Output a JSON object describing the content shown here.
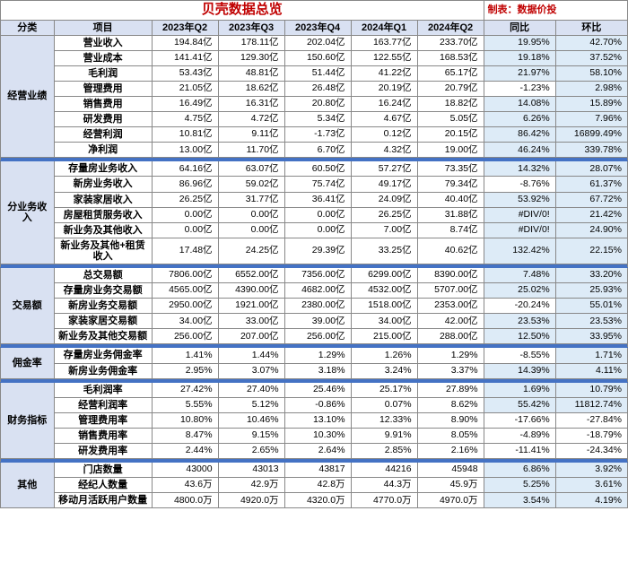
{
  "title": "贝壳数据总览",
  "maker": "制表：数据价投",
  "headers": {
    "category": "分类",
    "item": "项目",
    "periods": [
      "2023年Q2",
      "2023年Q3",
      "2023年Q4",
      "2024年Q1",
      "2024年Q2"
    ],
    "yoy": "同比",
    "qoq": "环比"
  },
  "colors": {
    "title": "#c00000",
    "header_bg": "#d9e1f2",
    "band": "#4472c4",
    "highlight": "#ddebf7",
    "border": "#888888"
  },
  "sections": [
    {
      "category": "经营业绩",
      "rows": [
        {
          "item": "营业收入",
          "v": [
            "194.84亿",
            "178.11亿",
            "202.04亿",
            "163.77亿",
            "233.70亿"
          ],
          "yoy": "19.95%",
          "qoq": "42.70%",
          "hy": true,
          "hq": true
        },
        {
          "item": "营业成本",
          "v": [
            "141.41亿",
            "129.30亿",
            "150.60亿",
            "122.55亿",
            "168.53亿"
          ],
          "yoy": "19.18%",
          "qoq": "37.52%",
          "hy": true,
          "hq": true
        },
        {
          "item": "毛利润",
          "v": [
            "53.43亿",
            "48.81亿",
            "51.44亿",
            "41.22亿",
            "65.17亿"
          ],
          "yoy": "21.97%",
          "qoq": "58.10%",
          "hy": true,
          "hq": true
        },
        {
          "item": "管理费用",
          "v": [
            "21.05亿",
            "18.62亿",
            "26.48亿",
            "20.19亿",
            "20.79亿"
          ],
          "yoy": "-1.23%",
          "qoq": "2.98%",
          "hy": false,
          "hq": true
        },
        {
          "item": "销售费用",
          "v": [
            "16.49亿",
            "16.31亿",
            "20.80亿",
            "16.24亿",
            "18.82亿"
          ],
          "yoy": "14.08%",
          "qoq": "15.89%",
          "hy": true,
          "hq": true
        },
        {
          "item": "研发费用",
          "v": [
            "4.75亿",
            "4.72亿",
            "5.34亿",
            "4.67亿",
            "5.05亿"
          ],
          "yoy": "6.26%",
          "qoq": "7.96%",
          "hy": true,
          "hq": true
        },
        {
          "item": "经营利润",
          "v": [
            "10.81亿",
            "9.11亿",
            "-1.73亿",
            "0.12亿",
            "20.15亿"
          ],
          "yoy": "86.42%",
          "qoq": "16899.49%",
          "hy": true,
          "hq": true
        },
        {
          "item": "净利润",
          "v": [
            "13.00亿",
            "11.70亿",
            "6.70亿",
            "4.32亿",
            "19.00亿"
          ],
          "yoy": "46.24%",
          "qoq": "339.78%",
          "hy": true,
          "hq": true
        }
      ]
    },
    {
      "category": "分业务收入",
      "rows": [
        {
          "item": "存量房业务收入",
          "v": [
            "64.16亿",
            "63.07亿",
            "60.50亿",
            "57.27亿",
            "73.35亿"
          ],
          "yoy": "14.32%",
          "qoq": "28.07%",
          "hy": true,
          "hq": true
        },
        {
          "item": "新房业务收入",
          "v": [
            "86.96亿",
            "59.02亿",
            "75.74亿",
            "49.17亿",
            "79.34亿"
          ],
          "yoy": "-8.76%",
          "qoq": "61.37%",
          "hy": false,
          "hq": true
        },
        {
          "item": "家装家居收入",
          "v": [
            "26.25亿",
            "31.77亿",
            "36.41亿",
            "24.09亿",
            "40.40亿"
          ],
          "yoy": "53.92%",
          "qoq": "67.72%",
          "hy": true,
          "hq": true
        },
        {
          "item": "房屋租赁服务收入",
          "v": [
            "0.00亿",
            "0.00亿",
            "0.00亿",
            "26.25亿",
            "31.88亿"
          ],
          "yoy": "#DIV/0!",
          "qoq": "21.42%",
          "hy": true,
          "hq": true
        },
        {
          "item": "新业务及其他收入",
          "v": [
            "0.00亿",
            "0.00亿",
            "0.00亿",
            "7.00亿",
            "8.74亿"
          ],
          "yoy": "#DIV/0!",
          "qoq": "24.90%",
          "hy": true,
          "hq": true
        },
        {
          "item": "新业务及其他+租赁收入",
          "v": [
            "17.48亿",
            "24.25亿",
            "29.39亿",
            "33.25亿",
            "40.62亿"
          ],
          "yoy": "132.42%",
          "qoq": "22.15%",
          "hy": true,
          "hq": true
        }
      ]
    },
    {
      "category": "交易额",
      "rows": [
        {
          "item": "总交易额",
          "v": [
            "7806.00亿",
            "6552.00亿",
            "7356.00亿",
            "6299.00亿",
            "8390.00亿"
          ],
          "yoy": "7.48%",
          "qoq": "33.20%",
          "hy": true,
          "hq": true
        },
        {
          "item": "存量房业务交易额",
          "v": [
            "4565.00亿",
            "4390.00亿",
            "4682.00亿",
            "4532.00亿",
            "5707.00亿"
          ],
          "yoy": "25.02%",
          "qoq": "25.93%",
          "hy": true,
          "hq": true
        },
        {
          "item": "新房业务交易额",
          "v": [
            "2950.00亿",
            "1921.00亿",
            "2380.00亿",
            "1518.00亿",
            "2353.00亿"
          ],
          "yoy": "-20.24%",
          "qoq": "55.01%",
          "hy": false,
          "hq": true
        },
        {
          "item": "家装家居交易额",
          "v": [
            "34.00亿",
            "33.00亿",
            "39.00亿",
            "34.00亿",
            "42.00亿"
          ],
          "yoy": "23.53%",
          "qoq": "23.53%",
          "hy": true,
          "hq": true
        },
        {
          "item": "新业务及其他交易额",
          "v": [
            "256.00亿",
            "207.00亿",
            "256.00亿",
            "215.00亿",
            "288.00亿"
          ],
          "yoy": "12.50%",
          "qoq": "33.95%",
          "hy": true,
          "hq": true
        }
      ]
    },
    {
      "category": "佣金率",
      "rows": [
        {
          "item": "存量房业务佣金率",
          "v": [
            "1.41%",
            "1.44%",
            "1.29%",
            "1.26%",
            "1.29%"
          ],
          "yoy": "-8.55%",
          "qoq": "1.71%",
          "hy": false,
          "hq": true
        },
        {
          "item": "新房业务佣金率",
          "v": [
            "2.95%",
            "3.07%",
            "3.18%",
            "3.24%",
            "3.37%"
          ],
          "yoy": "14.39%",
          "qoq": "4.11%",
          "hy": true,
          "hq": true
        }
      ]
    },
    {
      "category": "财务指标",
      "rows": [
        {
          "item": "毛利润率",
          "v": [
            "27.42%",
            "27.40%",
            "25.46%",
            "25.17%",
            "27.89%"
          ],
          "yoy": "1.69%",
          "qoq": "10.79%",
          "hy": true,
          "hq": true
        },
        {
          "item": "经营利润率",
          "v": [
            "5.55%",
            "5.12%",
            "-0.86%",
            "0.07%",
            "8.62%"
          ],
          "yoy": "55.42%",
          "qoq": "11812.74%",
          "hy": true,
          "hq": true
        },
        {
          "item": "管理费用率",
          "v": [
            "10.80%",
            "10.46%",
            "13.10%",
            "12.33%",
            "8.90%"
          ],
          "yoy": "-17.66%",
          "qoq": "-27.84%",
          "hy": false,
          "hq": false
        },
        {
          "item": "销售费用率",
          "v": [
            "8.47%",
            "9.15%",
            "10.30%",
            "9.91%",
            "8.05%"
          ],
          "yoy": "-4.89%",
          "qoq": "-18.79%",
          "hy": false,
          "hq": false
        },
        {
          "item": "研发费用率",
          "v": [
            "2.44%",
            "2.65%",
            "2.64%",
            "2.85%",
            "2.16%"
          ],
          "yoy": "-11.41%",
          "qoq": "-24.34%",
          "hy": false,
          "hq": false
        }
      ]
    },
    {
      "category": "其他",
      "rows": [
        {
          "item": "门店数量",
          "v": [
            "43000",
            "43013",
            "43817",
            "44216",
            "45948"
          ],
          "yoy": "6.86%",
          "qoq": "3.92%",
          "hy": true,
          "hq": true
        },
        {
          "item": "经纪人数量",
          "v": [
            "43.6万",
            "42.9万",
            "42.8万",
            "44.3万",
            "45.9万"
          ],
          "yoy": "5.25%",
          "qoq": "3.61%",
          "hy": true,
          "hq": true
        },
        {
          "item": "移动月活跃用户数量",
          "v": [
            "4800.0万",
            "4920.0万",
            "4320.0万",
            "4770.0万",
            "4970.0万"
          ],
          "yoy": "3.54%",
          "qoq": "4.19%",
          "hy": true,
          "hq": true
        }
      ]
    }
  ]
}
